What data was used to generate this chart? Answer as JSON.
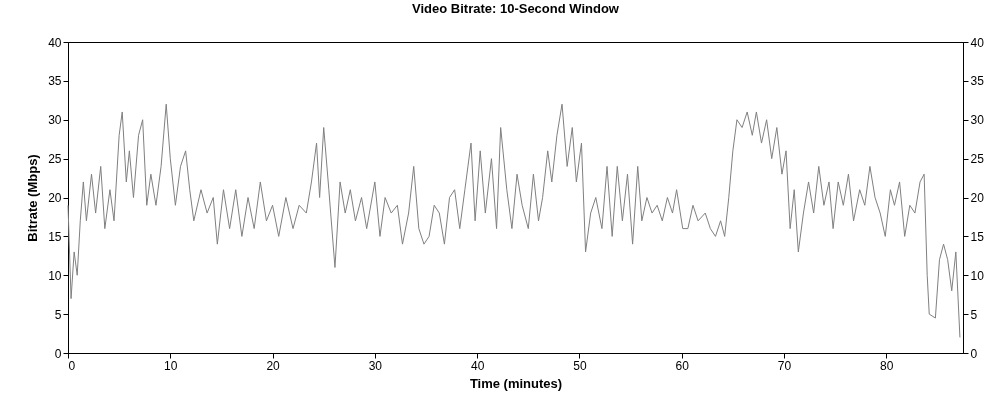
{
  "chart_data": {
    "type": "line",
    "title": "Video Bitrate: 10-Second Window",
    "xlabel": "Time (minutes)",
    "ylabel": "Bitrate (Mbps)",
    "xlim": [
      0,
      87.5
    ],
    "xticks": [
      0,
      10,
      20,
      30,
      40,
      50,
      60,
      70,
      80
    ],
    "ylim": [
      0,
      40
    ],
    "yticks": [
      0,
      5,
      10,
      15,
      20,
      25,
      30,
      35,
      40
    ],
    "y2lim": [
      0,
      40
    ],
    "y2ticks": [
      0,
      5,
      10,
      15,
      20,
      25,
      30,
      35,
      40
    ],
    "grid": false,
    "series": [
      {
        "color": "#808080",
        "x": [
          0,
          0.3,
          0.6,
          0.9,
          1.2,
          1.5,
          1.8,
          2.3,
          2.7,
          3.2,
          3.6,
          4.1,
          4.5,
          5.0,
          5.3,
          5.7,
          6.0,
          6.4,
          6.9,
          7.3,
          7.7,
          8.1,
          8.6,
          9.1,
          9.6,
          10.0,
          10.5,
          11.0,
          11.5,
          11.9,
          12.3,
          13,
          13.6,
          14.2,
          14.6,
          15.2,
          15.8,
          16.4,
          17,
          17.6,
          18.2,
          18.8,
          19.4,
          20,
          20.6,
          21.3,
          22,
          22.6,
          23.3,
          23.8,
          24.3,
          24.6,
          25.0,
          25.5,
          26.1,
          26.6,
          27.1,
          27.6,
          28.1,
          28.7,
          29.2,
          30.0,
          30.5,
          31.0,
          31.6,
          32.2,
          32.7,
          33.3,
          33.8,
          34.3,
          34.8,
          35.3,
          35.8,
          36.3,
          36.8,
          37.3,
          37.8,
          38.3,
          38.8,
          39.4,
          39.8,
          40.3,
          40.8,
          41.4,
          41.9,
          42.3,
          42.9,
          43.4,
          43.9,
          44.4,
          45.0,
          45.5,
          46.0,
          46.4,
          46.9,
          47.3,
          47.8,
          48.3,
          48.8,
          49.3,
          49.7,
          50.2,
          50.6,
          51.1,
          51.6,
          52.2,
          52.7,
          53.2,
          53.7,
          54.2,
          54.7,
          55.2,
          55.7,
          56.1,
          56.6,
          57.1,
          57.6,
          58.1,
          58.6,
          59.1,
          59.5,
          60.1,
          60.6,
          61.1,
          61.6,
          62.3,
          62.8,
          63.3,
          63.8,
          64.2,
          64.6,
          65.0,
          65.4,
          65.9,
          66.4,
          66.9,
          67.3,
          67.8,
          68.3,
          68.8,
          69.3,
          69.8,
          70.2,
          70.6,
          71.0,
          71.4,
          71.9,
          72.4,
          72.9,
          73.4,
          73.9,
          74.4,
          74.8,
          75.3,
          75.8,
          76.3,
          76.8,
          77.4,
          77.9,
          78.4,
          78.9,
          79.4,
          79.9,
          80.4,
          80.8,
          81.3,
          81.8,
          82.3,
          82.8,
          83.3,
          83.7,
          84.0,
          84.2,
          84.8,
          85.2,
          85.6,
          86.0,
          86.4,
          86.8,
          87.2
        ],
        "values": [
          19,
          7,
          13,
          10,
          17,
          22,
          17,
          23,
          18,
          24,
          16,
          21,
          17,
          28,
          31,
          22,
          26,
          20,
          28,
          30,
          19,
          23,
          19,
          24,
          32,
          25,
          19,
          24,
          26,
          21,
          17,
          21,
          18,
          20,
          14,
          21,
          16,
          21,
          15,
          20,
          16,
          22,
          17,
          19,
          15,
          20,
          16,
          19,
          18,
          22,
          27,
          20,
          29,
          21,
          11,
          22,
          18,
          21,
          17,
          20,
          16,
          22,
          15,
          20,
          18,
          19,
          14,
          18,
          24,
          16,
          14,
          15,
          19,
          18,
          14,
          20,
          21,
          16,
          21,
          27,
          17,
          26,
          18,
          25,
          16,
          29,
          21,
          16,
          23,
          19,
          16,
          23,
          17,
          20,
          26,
          22,
          28,
          32,
          24,
          29,
          22,
          27,
          13,
          18,
          20,
          16,
          24,
          15,
          24,
          17,
          23,
          14,
          24,
          17,
          20,
          18,
          19,
          17,
          20,
          18,
          21,
          16,
          16,
          19,
          17,
          18,
          16,
          15,
          17,
          15,
          20,
          26,
          30,
          29,
          31,
          28,
          31,
          27,
          30,
          25,
          29,
          23,
          26,
          16,
          21,
          13,
          18,
          22,
          18,
          24,
          19,
          22,
          16,
          22,
          19,
          23,
          17,
          21,
          19,
          24,
          20,
          18,
          15,
          21,
          19,
          22,
          15,
          19,
          18,
          22,
          23,
          10,
          5,
          4.5,
          12,
          14,
          12,
          8,
          13,
          2
        ]
      }
    ]
  }
}
